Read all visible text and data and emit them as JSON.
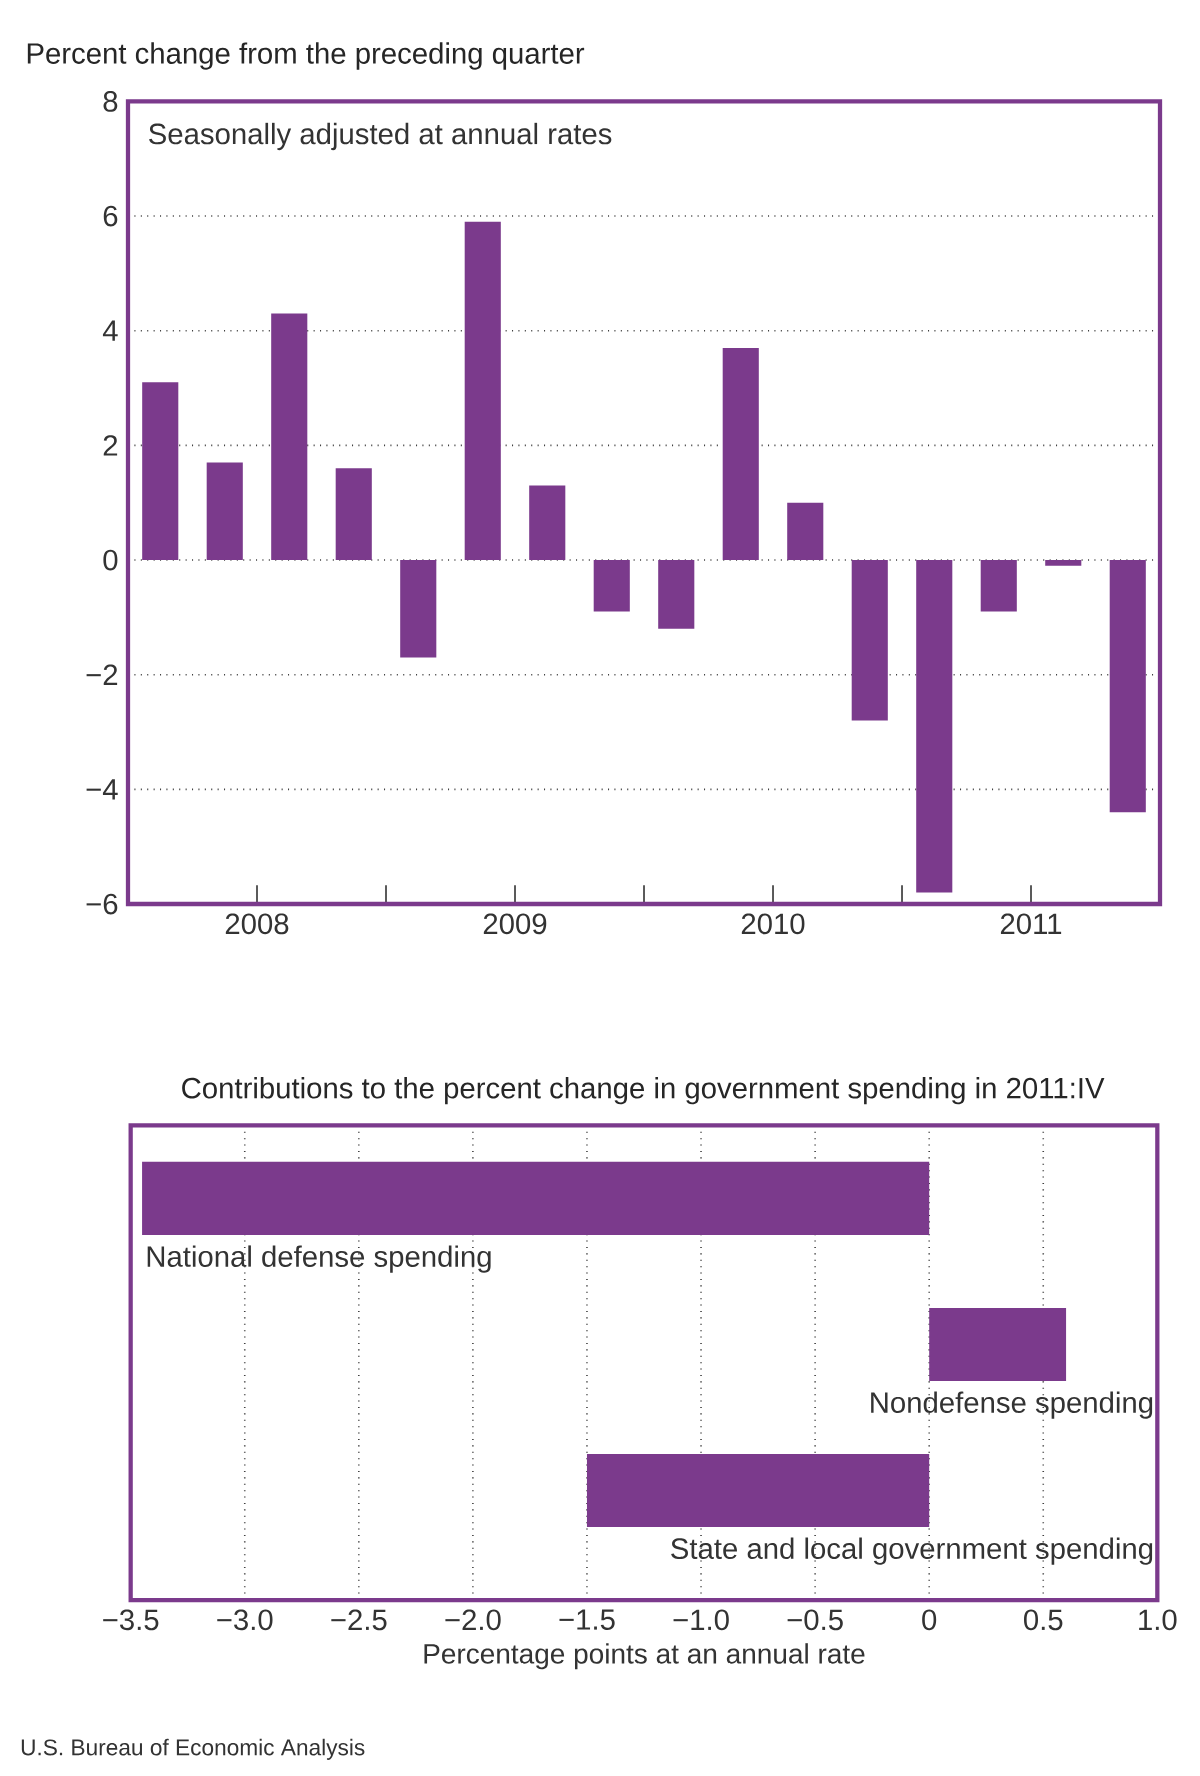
{
  "chart_data": [
    {
      "type": "bar",
      "title": "Percent change from the preceding quarter",
      "subtitle": "Seasonally adjusted at annual rates",
      "color": "#7b3a8c",
      "x": [
        2008.125,
        2008.375,
        2008.625,
        2008.875,
        2009.125,
        2009.375,
        2009.625,
        2009.875,
        2010.125,
        2010.375,
        2010.625,
        2010.875,
        2011.125,
        2011.375,
        2011.625,
        2011.875
      ],
      "values": [
        3.1,
        1.7,
        4.3,
        1.6,
        -1.7,
        5.9,
        1.3,
        -0.9,
        -1.2,
        3.7,
        1.0,
        -2.8,
        -5.8,
        -0.9,
        -0.1,
        -4.4
      ],
      "xlim": [
        2008,
        2012
      ],
      "xticks": [
        {
          "value": 2008.5,
          "label": "2008"
        },
        {
          "value": 2009.5,
          "label": "2009"
        },
        {
          "value": 2010.5,
          "label": "2010"
        },
        {
          "value": 2011.5,
          "label": "2011"
        },
        {
          "value": 2009,
          "label": null
        },
        {
          "value": 2010,
          "label": null
        },
        {
          "value": 2011,
          "label": null
        }
      ],
      "ylim": [
        -6,
        8
      ],
      "yticks": [
        {
          "value": -6,
          "label": "−6"
        },
        {
          "value": -4,
          "label": "−4"
        },
        {
          "value": -2,
          "label": "−2"
        },
        0,
        2,
        4,
        6,
        8
      ],
      "grid": "y"
    },
    {
      "type": "bar",
      "orientation": "horizontal",
      "title": "Contributions to the percent change in government spending in 2011:IV",
      "color": "#7b3a8c",
      "categories": [
        "National defense spending",
        "Nondefense spending",
        "State and local government spending"
      ],
      "values": [
        -3.45,
        0.6,
        -1.5
      ],
      "xlim": [
        -3.5,
        1.0
      ],
      "xticks": [
        {
          "value": -3.5,
          "label": "−3.5"
        },
        {
          "value": -3.0,
          "label": "−3.0"
        },
        {
          "value": -2.5,
          "label": "−2.5"
        },
        {
          "value": -2.0,
          "label": "−2.0"
        },
        {
          "value": -1.5,
          "label": "−1.5"
        },
        {
          "value": -1.0,
          "label": "−1.0"
        },
        {
          "value": -0.5,
          "label": "−0.5"
        },
        0,
        0.5,
        {
          "value": 1.0,
          "label": "1.0"
        }
      ],
      "xlabel": "Percentage points at an annual rate",
      "grid": "x",
      "annotations": [
        "U.S. Bureau of Economic Analysis"
      ]
    }
  ]
}
